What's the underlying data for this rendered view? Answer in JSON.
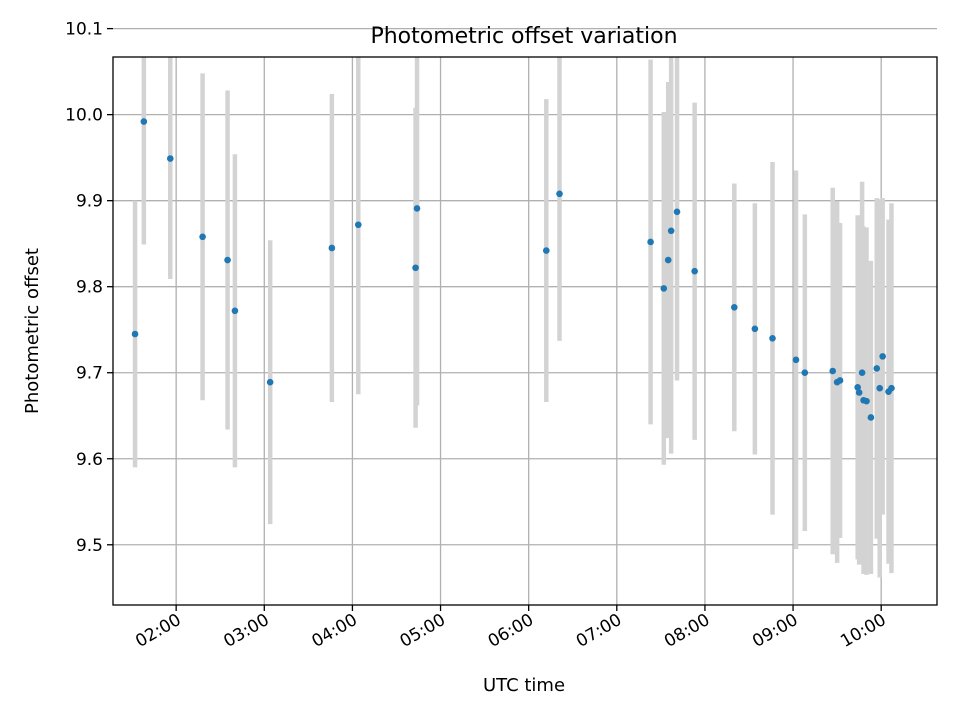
{
  "chart_data": {
    "type": "scatter",
    "title": "Photometric offset variation",
    "xlabel": "UTC time",
    "ylabel": "Photometric offset",
    "x_is_time": true,
    "xlim": [
      "01:17",
      "10:38"
    ],
    "ylim": [
      9.43,
      10.067
    ],
    "x_ticks": [
      "02:00",
      "03:00",
      "04:00",
      "05:00",
      "06:00",
      "07:00",
      "08:00",
      "09:00",
      "10:00"
    ],
    "y_ticks": [
      9.5,
      9.6,
      9.7,
      9.8,
      9.9,
      10.0,
      10.1
    ],
    "y_tick_labels": [
      "9.5",
      "9.6",
      "9.7",
      "9.8",
      "9.9",
      "10.0",
      "10.1"
    ],
    "grid": true,
    "colors": {
      "marker": "#1f77b4",
      "errorbar": "#d3d3d3"
    },
    "points": [
      {
        "x": "01:32",
        "y": 9.745,
        "yerr": 0.155
      },
      {
        "x": "01:38",
        "y": 9.992,
        "yerr": 0.143
      },
      {
        "x": "01:56",
        "y": 9.949,
        "yerr": 0.14
      },
      {
        "x": "02:18",
        "y": 9.858,
        "yerr": 0.19
      },
      {
        "x": "02:35",
        "y": 9.831,
        "yerr": 0.197
      },
      {
        "x": "02:40",
        "y": 9.772,
        "yerr": 0.182
      },
      {
        "x": "03:04",
        "y": 9.689,
        "yerr": 0.165
      },
      {
        "x": "03:46",
        "y": 9.845,
        "yerr": 0.179
      },
      {
        "x": "04:04",
        "y": 9.872,
        "yerr": 0.197
      },
      {
        "x": "04:43",
        "y": 9.822,
        "yerr": 0.186
      },
      {
        "x": "04:44",
        "y": 9.891,
        "yerr": 0.229
      },
      {
        "x": "06:12",
        "y": 9.842,
        "yerr": 0.176
      },
      {
        "x": "06:21",
        "y": 9.908,
        "yerr": 0.171
      },
      {
        "x": "07:23",
        "y": 9.852,
        "yerr": 0.212
      },
      {
        "x": "07:32",
        "y": 9.798,
        "yerr": 0.205
      },
      {
        "x": "07:35",
        "y": 9.831,
        "yerr": 0.207
      },
      {
        "x": "07:37",
        "y": 9.865,
        "yerr": 0.259
      },
      {
        "x": "07:41",
        "y": 9.887,
        "yerr": 0.196
      },
      {
        "x": "07:53",
        "y": 9.818,
        "yerr": 0.196
      },
      {
        "x": "08:20",
        "y": 9.776,
        "yerr": 0.144
      },
      {
        "x": "08:34",
        "y": 9.751,
        "yerr": 0.146
      },
      {
        "x": "08:46",
        "y": 9.74,
        "yerr": 0.205
      },
      {
        "x": "09:02",
        "y": 9.715,
        "yerr": 0.22
      },
      {
        "x": "09:08",
        "y": 9.7,
        "yerr": 0.184
      },
      {
        "x": "09:27",
        "y": 9.702,
        "yerr": 0.213
      },
      {
        "x": "09:30",
        "y": 9.689,
        "yerr": 0.21
      },
      {
        "x": "09:32",
        "y": 9.691,
        "yerr": 0.183
      },
      {
        "x": "09:44",
        "y": 9.683,
        "yerr": 0.2
      },
      {
        "x": "09:45",
        "y": 9.677,
        "yerr": 0.2
      },
      {
        "x": "09:47",
        "y": 9.7,
        "yerr": 0.222
      },
      {
        "x": "09:48",
        "y": 9.668,
        "yerr": 0.202
      },
      {
        "x": "09:50",
        "y": 9.667,
        "yerr": 0.202
      },
      {
        "x": "09:53",
        "y": 9.648,
        "yerr": 0.182
      },
      {
        "x": "09:57",
        "y": 9.705,
        "yerr": 0.198
      },
      {
        "x": "09:59",
        "y": 9.682,
        "yerr": 0.22
      },
      {
        "x": "10:01",
        "y": 9.719,
        "yerr": 0.184
      },
      {
        "x": "10:05",
        "y": 9.678,
        "yerr": 0.2
      },
      {
        "x": "10:07",
        "y": 9.682,
        "yerr": 0.215
      }
    ]
  }
}
